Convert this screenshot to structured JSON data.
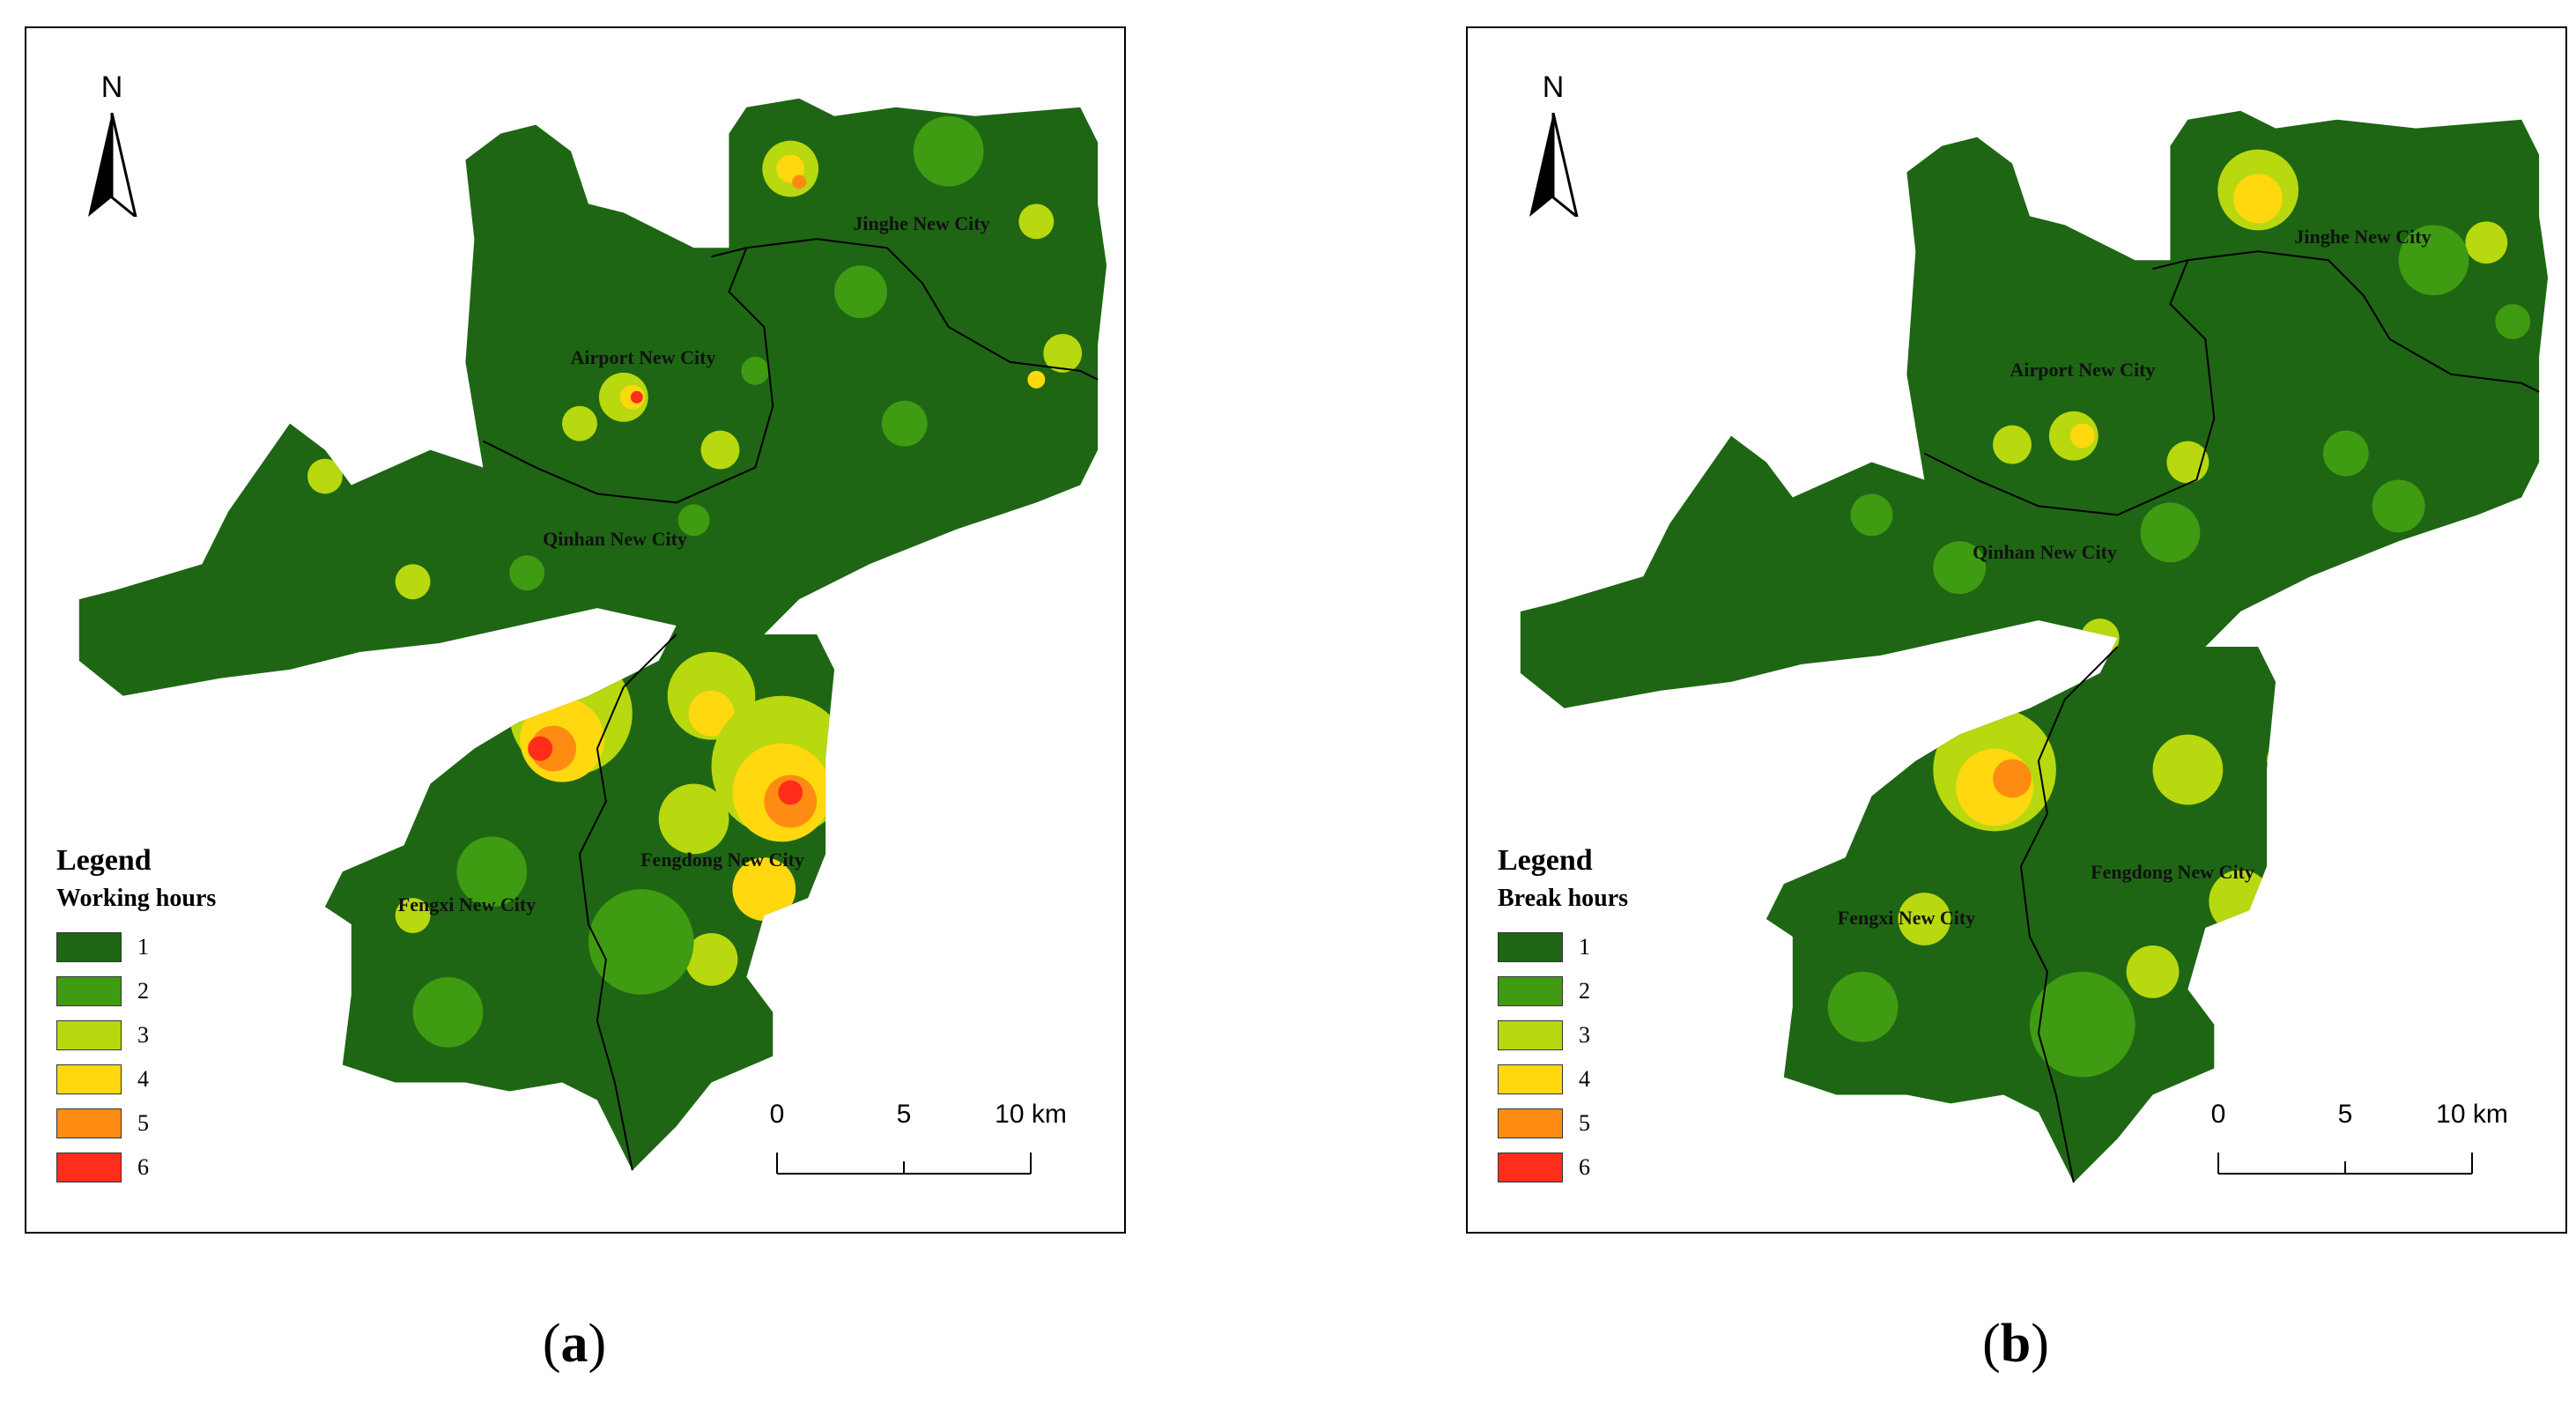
{
  "north_label": "N",
  "panels": [
    {
      "id": "a",
      "caption_open": "(",
      "caption_letter": "a",
      "caption_close": ")",
      "legend_title": "Legend",
      "legend_subtitle": "Working hours",
      "cities": [
        "Jinghe New City",
        "Airport New City",
        "Qinhan New City",
        "Fengdong New City",
        "Fengxi New City"
      ]
    },
    {
      "id": "b",
      "caption_open": "(",
      "caption_letter": "b",
      "caption_close": ")",
      "legend_title": "Legend",
      "legend_subtitle": "Break hours",
      "cities": [
        "Jinghe New City",
        "Airport New City",
        "Qinhan New City",
        "Fengdong New City",
        "Fengxi New City"
      ]
    }
  ],
  "legend_classes": [
    {
      "value": "1",
      "color": "#1e6614"
    },
    {
      "value": "2",
      "color": "#3f9b12"
    },
    {
      "value": "3",
      "color": "#b8d80f"
    },
    {
      "value": "4",
      "color": "#ffd80f"
    },
    {
      "value": "5",
      "color": "#ff8c12"
    },
    {
      "value": "6",
      "color": "#ff2d1a"
    }
  ],
  "scale_labels": [
    "0",
    "5",
    "10 km"
  ]
}
